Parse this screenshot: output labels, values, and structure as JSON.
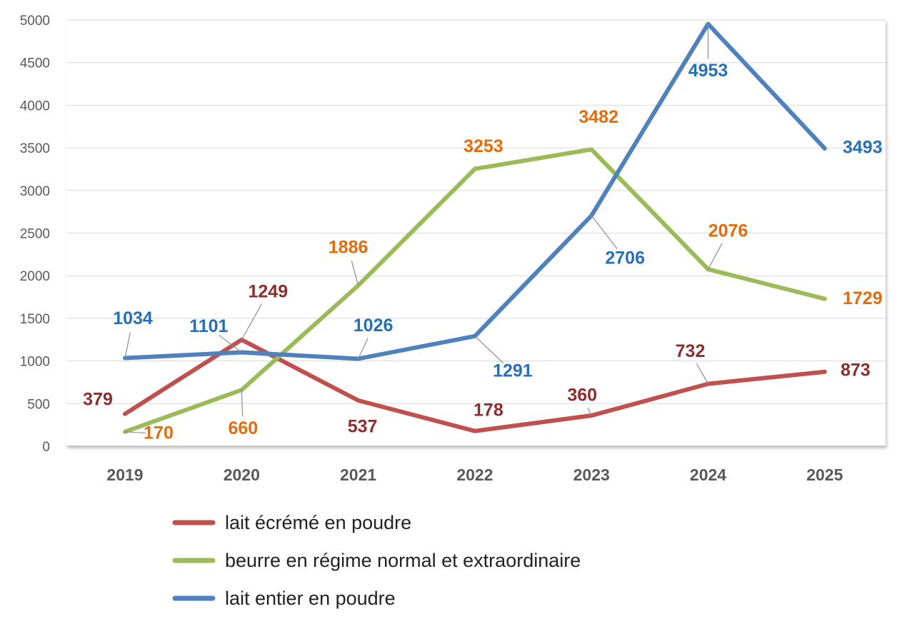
{
  "chart_data": {
    "type": "line",
    "categories": [
      "2019",
      "2020",
      "2021",
      "2022",
      "2023",
      "2024",
      "2025"
    ],
    "ylim": [
      0,
      5000
    ],
    "yticks": [
      "0",
      "500",
      "1000",
      "1500",
      "2000",
      "2500",
      "3000",
      "3500",
      "4000",
      "4500",
      "5000"
    ],
    "grid": true,
    "legend_position": "bottom",
    "series": [
      {
        "name": "lait écrémé en poudre",
        "color": "#c0504d",
        "label_color": "#8b2e2e",
        "values": [
          379,
          1249,
          537,
          178,
          360,
          732,
          873
        ]
      },
      {
        "name": "beurre en régime normal et extraordinaire",
        "color": "#9bbb59",
        "label_color": "#e46c0a",
        "values": [
          170,
          660,
          1886,
          3253,
          3482,
          2076,
          1729
        ]
      },
      {
        "name": "lait entier en poudre",
        "color": "#4f81bd",
        "label_color": "#2670b8",
        "values": [
          1034,
          1101,
          1026,
          1291,
          2706,
          4953,
          3493
        ]
      }
    ]
  }
}
